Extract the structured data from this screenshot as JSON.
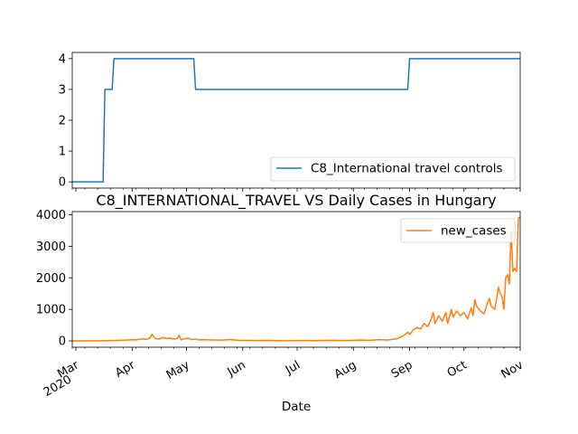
{
  "chart_data": [
    {
      "type": "line",
      "title": "",
      "xlabel": "",
      "ylabel": "",
      "ylim": [
        -0.2,
        4.2
      ],
      "yticks": [
        0,
        1,
        2,
        3,
        4
      ],
      "grid": false,
      "legend_position": "lower-right",
      "color": "#1f77b4",
      "series": [
        {
          "name": "C8_International travel controls",
          "points": [
            [
              "2020-02-28",
              0
            ],
            [
              "2020-03-16",
              0
            ],
            [
              "2020-03-17",
              3
            ],
            [
              "2020-03-21",
              3
            ],
            [
              "2020-03-22",
              4
            ],
            [
              "2020-05-05",
              4
            ],
            [
              "2020-05-06",
              3
            ],
            [
              "2020-08-31",
              3
            ],
            [
              "2020-09-01",
              4
            ],
            [
              "2020-11-01",
              4
            ]
          ]
        }
      ]
    },
    {
      "type": "line",
      "title": "C8_INTERNATIONAL_TRAVEL VS Daily Cases in Hungary",
      "xlabel": "Date",
      "ylabel": "",
      "ylim": [
        -200,
        4100
      ],
      "yticks": [
        0,
        1000,
        2000,
        3000,
        4000
      ],
      "xlim": [
        "2020-02-28",
        "2020-11-01"
      ],
      "xticks": [
        {
          "date": "2020-03-01",
          "label": "Mar",
          "sublabel": "2020"
        },
        {
          "date": "2020-04-01",
          "label": "Apr"
        },
        {
          "date": "2020-05-01",
          "label": "May"
        },
        {
          "date": "2020-06-01",
          "label": "Jun"
        },
        {
          "date": "2020-07-01",
          "label": "Jul"
        },
        {
          "date": "2020-08-01",
          "label": "Aug"
        },
        {
          "date": "2020-09-01",
          "label": "Sep"
        },
        {
          "date": "2020-10-01",
          "label": "Oct"
        },
        {
          "date": "2020-11-01",
          "label": "Nov"
        }
      ],
      "grid": false,
      "legend_position": "top-right",
      "color": "#ff7f0e",
      "series": [
        {
          "name": "new_cases",
          "points": [
            [
              "2020-02-28",
              0
            ],
            [
              "2020-03-05",
              2
            ],
            [
              "2020-03-10",
              3
            ],
            [
              "2020-03-15",
              5
            ],
            [
              "2020-03-20",
              12
            ],
            [
              "2020-03-25",
              20
            ],
            [
              "2020-03-30",
              30
            ],
            [
              "2020-04-01",
              40
            ],
            [
              "2020-04-03",
              30
            ],
            [
              "2020-04-05",
              55
            ],
            [
              "2020-04-07",
              60
            ],
            [
              "2020-04-09",
              45
            ],
            [
              "2020-04-11",
              100
            ],
            [
              "2020-04-12",
              210
            ],
            [
              "2020-04-13",
              120
            ],
            [
              "2020-04-14",
              70
            ],
            [
              "2020-04-16",
              60
            ],
            [
              "2020-04-18",
              110
            ],
            [
              "2020-04-20",
              80
            ],
            [
              "2020-04-22",
              90
            ],
            [
              "2020-04-24",
              60
            ],
            [
              "2020-04-26",
              80
            ],
            [
              "2020-04-27",
              180
            ],
            [
              "2020-04-28",
              30
            ],
            [
              "2020-04-30",
              70
            ],
            [
              "2020-05-02",
              90
            ],
            [
              "2020-05-04",
              40
            ],
            [
              "2020-05-06",
              60
            ],
            [
              "2020-05-08",
              30
            ],
            [
              "2020-05-10",
              40
            ],
            [
              "2020-05-15",
              30
            ],
            [
              "2020-05-20",
              25
            ],
            [
              "2020-05-25",
              40
            ],
            [
              "2020-05-30",
              20
            ],
            [
              "2020-06-05",
              15
            ],
            [
              "2020-06-10",
              10
            ],
            [
              "2020-06-15",
              15
            ],
            [
              "2020-06-20",
              8
            ],
            [
              "2020-06-25",
              5
            ],
            [
              "2020-06-30",
              10
            ],
            [
              "2020-07-05",
              12
            ],
            [
              "2020-07-10",
              8
            ],
            [
              "2020-07-15",
              15
            ],
            [
              "2020-07-20",
              20
            ],
            [
              "2020-07-25",
              10
            ],
            [
              "2020-07-30",
              15
            ],
            [
              "2020-08-05",
              25
            ],
            [
              "2020-08-10",
              20
            ],
            [
              "2020-08-15",
              40
            ],
            [
              "2020-08-20",
              30
            ],
            [
              "2020-08-25",
              70
            ],
            [
              "2020-08-27",
              120
            ],
            [
              "2020-08-29",
              180
            ],
            [
              "2020-08-31",
              280
            ],
            [
              "2020-09-01",
              200
            ],
            [
              "2020-09-03",
              350
            ],
            [
              "2020-09-05",
              420
            ],
            [
              "2020-09-07",
              380
            ],
            [
              "2020-09-09",
              550
            ],
            [
              "2020-09-11",
              450
            ],
            [
              "2020-09-13",
              700
            ],
            [
              "2020-09-14",
              900
            ],
            [
              "2020-09-15",
              550
            ],
            [
              "2020-09-17",
              800
            ],
            [
              "2020-09-19",
              620
            ],
            [
              "2020-09-21",
              900
            ],
            [
              "2020-09-22",
              550
            ],
            [
              "2020-09-24",
              1000
            ],
            [
              "2020-09-25",
              750
            ],
            [
              "2020-09-27",
              950
            ],
            [
              "2020-09-29",
              800
            ],
            [
              "2020-10-01",
              900
            ],
            [
              "2020-10-03",
              700
            ],
            [
              "2020-10-05",
              1050
            ],
            [
              "2020-10-06",
              800
            ],
            [
              "2020-10-07",
              1300
            ],
            [
              "2020-10-08",
              1100
            ],
            [
              "2020-10-10",
              950
            ],
            [
              "2020-10-12",
              850
            ],
            [
              "2020-10-14",
              1200
            ],
            [
              "2020-10-15",
              1350
            ],
            [
              "2020-10-16",
              1100
            ],
            [
              "2020-10-18",
              1000
            ],
            [
              "2020-10-20",
              1700
            ],
            [
              "2020-10-21",
              1500
            ],
            [
              "2020-10-22",
              1400
            ],
            [
              "2020-10-23",
              1000
            ],
            [
              "2020-10-24",
              2000
            ],
            [
              "2020-10-25",
              2100
            ],
            [
              "2020-10-26",
              1800
            ],
            [
              "2020-10-27",
              3500
            ],
            [
              "2020-10-28",
              2200
            ],
            [
              "2020-10-29",
              2300
            ],
            [
              "2020-10-30",
              2200
            ],
            [
              "2020-10-31",
              3900
            ],
            [
              "2020-11-01",
              3920
            ]
          ]
        }
      ]
    }
  ]
}
